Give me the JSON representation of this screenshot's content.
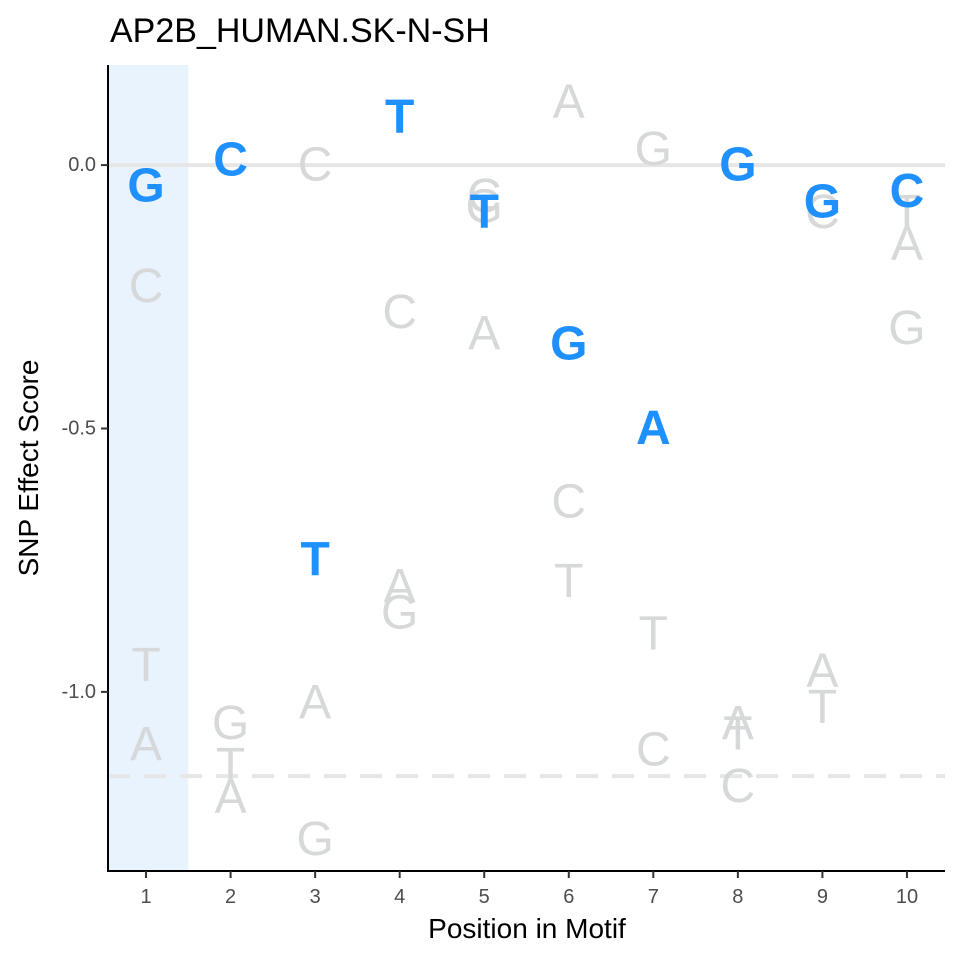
{
  "chart_data": {
    "type": "scatter",
    "title": "AP2B_HUMAN.SK-N-SH",
    "xlabel": "Position in Motif",
    "ylabel": "SNP Effect Score",
    "xlim": [
      0.55,
      10.45
    ],
    "ylim": [
      -1.34,
      0.19
    ],
    "x_ticks": [
      1,
      2,
      3,
      4,
      5,
      6,
      7,
      8,
      9,
      10
    ],
    "y_ticks": [
      0.0,
      -0.5,
      -1.0
    ],
    "y_tick_labels": [
      "0.0",
      "-0.5",
      "-1.0"
    ],
    "highlight_position": 1,
    "reference_line_y": 0.0,
    "threshold_line_y": -1.16,
    "colors": {
      "reference": "#1e90ff",
      "alternative": "#d6d8da",
      "highlight": "#e8f3fe",
      "gridline": "#e6e6e6"
    },
    "reference_letters": [
      {
        "x": 1,
        "letter": "G",
        "y": -0.04
      },
      {
        "x": 2,
        "letter": "C",
        "y": 0.01
      },
      {
        "x": 3,
        "letter": "T",
        "y": -0.75
      },
      {
        "x": 4,
        "letter": "T",
        "y": 0.09
      },
      {
        "x": 5,
        "letter": "T",
        "y": -0.09
      },
      {
        "x": 6,
        "letter": "G",
        "y": -0.34
      },
      {
        "x": 7,
        "letter": "A",
        "y": -0.5
      },
      {
        "x": 8,
        "letter": "G",
        "y": 0.0
      },
      {
        "x": 9,
        "letter": "G",
        "y": -0.07
      },
      {
        "x": 10,
        "letter": "C",
        "y": -0.05
      }
    ],
    "alternative_letters": [
      {
        "x": 1,
        "letter": "C",
        "y": -0.23
      },
      {
        "x": 1,
        "letter": "T",
        "y": -0.95
      },
      {
        "x": 1,
        "letter": "A",
        "y": -1.1
      },
      {
        "x": 2,
        "letter": "G",
        "y": -1.06
      },
      {
        "x": 2,
        "letter": "T",
        "y": -1.14
      },
      {
        "x": 2,
        "letter": "A",
        "y": -1.2
      },
      {
        "x": 3,
        "letter": "C",
        "y": 0.0
      },
      {
        "x": 3,
        "letter": "A",
        "y": -1.02
      },
      {
        "x": 3,
        "letter": "G",
        "y": -1.28
      },
      {
        "x": 4,
        "letter": "C",
        "y": -0.28
      },
      {
        "x": 4,
        "letter": "A",
        "y": -0.8
      },
      {
        "x": 4,
        "letter": "G",
        "y": -0.85
      },
      {
        "x": 5,
        "letter": "C",
        "y": -0.06
      },
      {
        "x": 5,
        "letter": "G",
        "y": -0.08
      },
      {
        "x": 5,
        "letter": "A",
        "y": -0.32
      },
      {
        "x": 6,
        "letter": "A",
        "y": 0.12
      },
      {
        "x": 6,
        "letter": "C",
        "y": -0.64
      },
      {
        "x": 6,
        "letter": "T",
        "y": -0.79
      },
      {
        "x": 7,
        "letter": "G",
        "y": 0.03
      },
      {
        "x": 7,
        "letter": "T",
        "y": -0.89
      },
      {
        "x": 7,
        "letter": "C",
        "y": -1.11
      },
      {
        "x": 8,
        "letter": "A",
        "y": -1.06
      },
      {
        "x": 8,
        "letter": "T",
        "y": -1.08
      },
      {
        "x": 8,
        "letter": "C",
        "y": -1.18
      },
      {
        "x": 9,
        "letter": "C",
        "y": -0.09
      },
      {
        "x": 9,
        "letter": "A",
        "y": -0.96
      },
      {
        "x": 9,
        "letter": "T",
        "y": -1.03
      },
      {
        "x": 10,
        "letter": "T",
        "y": -0.09
      },
      {
        "x": 10,
        "letter": "A",
        "y": -0.15
      },
      {
        "x": 10,
        "letter": "G",
        "y": -0.31
      }
    ]
  }
}
